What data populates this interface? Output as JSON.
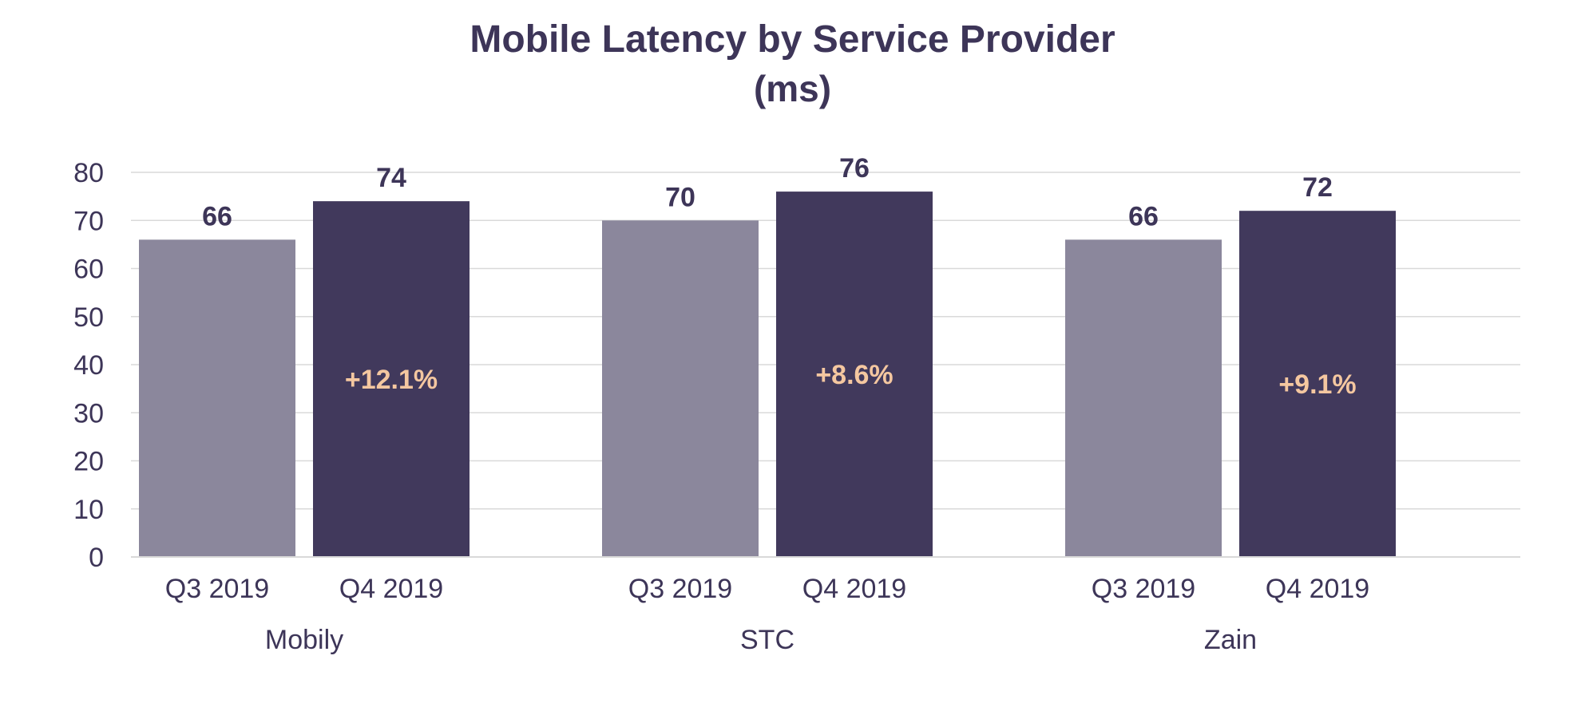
{
  "chart_data": {
    "type": "bar",
    "title": "Mobile Latency by Service Provider",
    "subtitle": "(ms)",
    "xlabel": "",
    "ylabel": "",
    "ylim": [
      0,
      80
    ],
    "yticks": [
      0,
      10,
      20,
      30,
      40,
      50,
      60,
      70,
      80
    ],
    "grid": true,
    "groups": [
      {
        "name": "Mobily",
        "change_label": "+12.1%",
        "bars": [
          {
            "label": "Q3 2019",
            "value": 66
          },
          {
            "label": "Q4 2019",
            "value": 74
          }
        ]
      },
      {
        "name": "STC",
        "change_label": "+8.6%",
        "bars": [
          {
            "label": "Q3 2019",
            "value": 70
          },
          {
            "label": "Q4 2019",
            "value": 76
          }
        ]
      },
      {
        "name": "Zain",
        "change_label": "+9.1%",
        "bars": [
          {
            "label": "Q3 2019",
            "value": 66
          },
          {
            "label": "Q4 2019",
            "value": 72
          }
        ]
      }
    ],
    "colors": {
      "q3": "#8b879c",
      "q4": "#41395c",
      "change_label": "#f4c7a0",
      "text": "#3d3558",
      "grid": "#d9d9d9"
    }
  }
}
